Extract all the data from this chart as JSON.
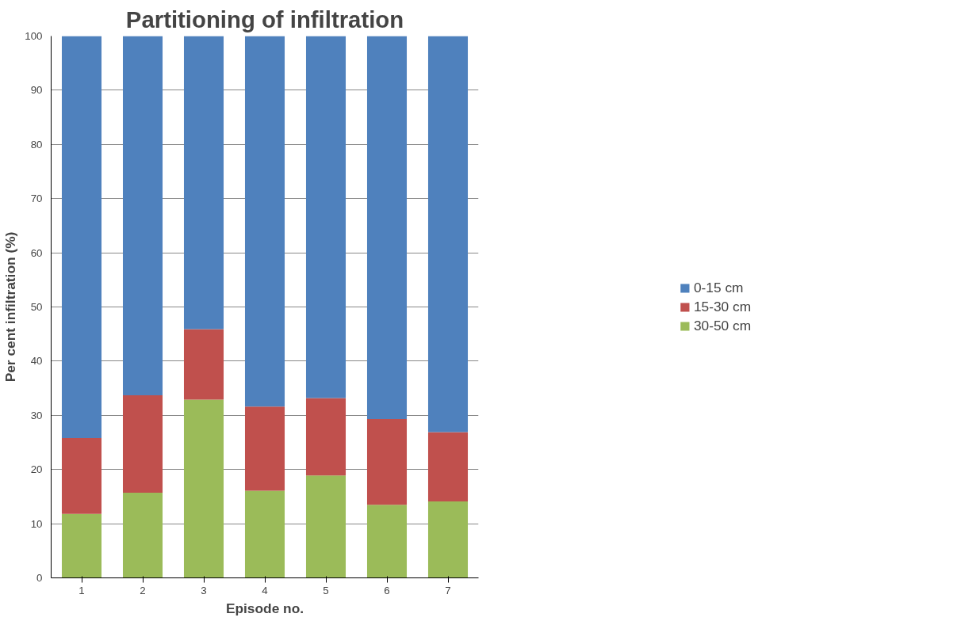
{
  "chart_data": {
    "type": "bar",
    "title": "Partitioning of infiltration",
    "xlabel": "Episode no.",
    "ylabel": "Per cent infiltration (%)",
    "categories": [
      "1",
      "2",
      "3",
      "4",
      "5",
      "6",
      "7"
    ],
    "stacked": true,
    "series": [
      {
        "name": "30-50 cm",
        "color": "#9bbb59",
        "values": [
          11.8,
          15.7,
          32.9,
          16.1,
          18.9,
          13.5,
          14.1
        ]
      },
      {
        "name": "15-30 cm",
        "color": "#c0504d",
        "values": [
          14.0,
          18.0,
          13.0,
          15.5,
          14.3,
          15.8,
          12.8
        ]
      },
      {
        "name": "0-15 cm",
        "color": "#4f81bd",
        "values": [
          74.2,
          66.3,
          54.1,
          68.4,
          66.8,
          70.7,
          73.1
        ]
      }
    ],
    "ylim": [
      0,
      100
    ],
    "yticks": [
      0,
      10,
      20,
      30,
      40,
      50,
      60,
      70,
      80,
      90,
      100
    ],
    "grid": "y",
    "legend": "right"
  }
}
